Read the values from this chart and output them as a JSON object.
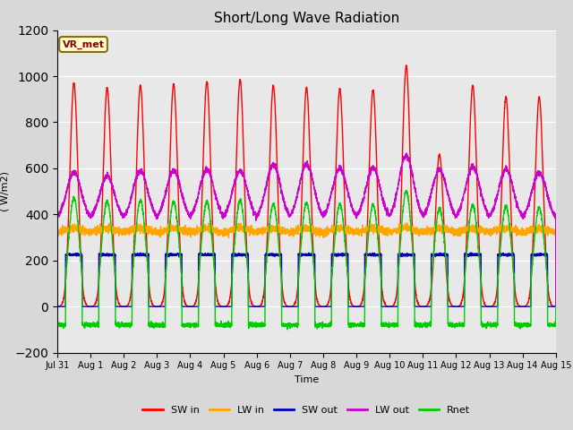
{
  "title": "Short/Long Wave Radiation",
  "xlabel": "Time",
  "ylabel": "( W/m2)",
  "ylim": [
    -200,
    1200
  ],
  "yticks": [
    -200,
    0,
    200,
    400,
    600,
    800,
    1000,
    1200
  ],
  "n_days": 15,
  "xtick_labels": [
    "Jul 31",
    "Aug 1",
    "Aug 2",
    "Aug 3",
    "Aug 4",
    "Aug 5",
    "Aug 6",
    "Aug 7",
    "Aug 8",
    "Aug 9",
    "Aug 10",
    "Aug 11",
    "Aug 12",
    "Aug 13",
    "Aug 14",
    "Aug 15"
  ],
  "station_label": "VR_met",
  "colors": {
    "SW_in": "#ff0000",
    "LW_in": "#ffa500",
    "SW_out": "#0000bb",
    "LW_out": "#cc00cc",
    "Rnet": "#00cc00"
  },
  "legend_labels": [
    "SW in",
    "LW in",
    "SW out",
    "LW out",
    "Rnet"
  ],
  "bg_color": "#d8d8d8",
  "plot_bg_color": "#e8e8e8",
  "SW_in_peaks": [
    970,
    950,
    960,
    965,
    975,
    985,
    960,
    950,
    945,
    940,
    1045,
    660,
    960,
    910,
    910
  ],
  "SW_out_day": 225,
  "LW_in_base": 320,
  "LW_out_night": 375,
  "LW_out_day_peaks": [
    580,
    565,
    590,
    590,
    595,
    590,
    615,
    620,
    600,
    600,
    655,
    595,
    605,
    595,
    580
  ],
  "Rnet_night": -80,
  "Rnet_day_peaks": [
    470,
    455,
    460,
    455,
    455,
    460,
    445,
    450,
    445,
    440,
    500,
    425,
    440,
    435,
    430
  ]
}
